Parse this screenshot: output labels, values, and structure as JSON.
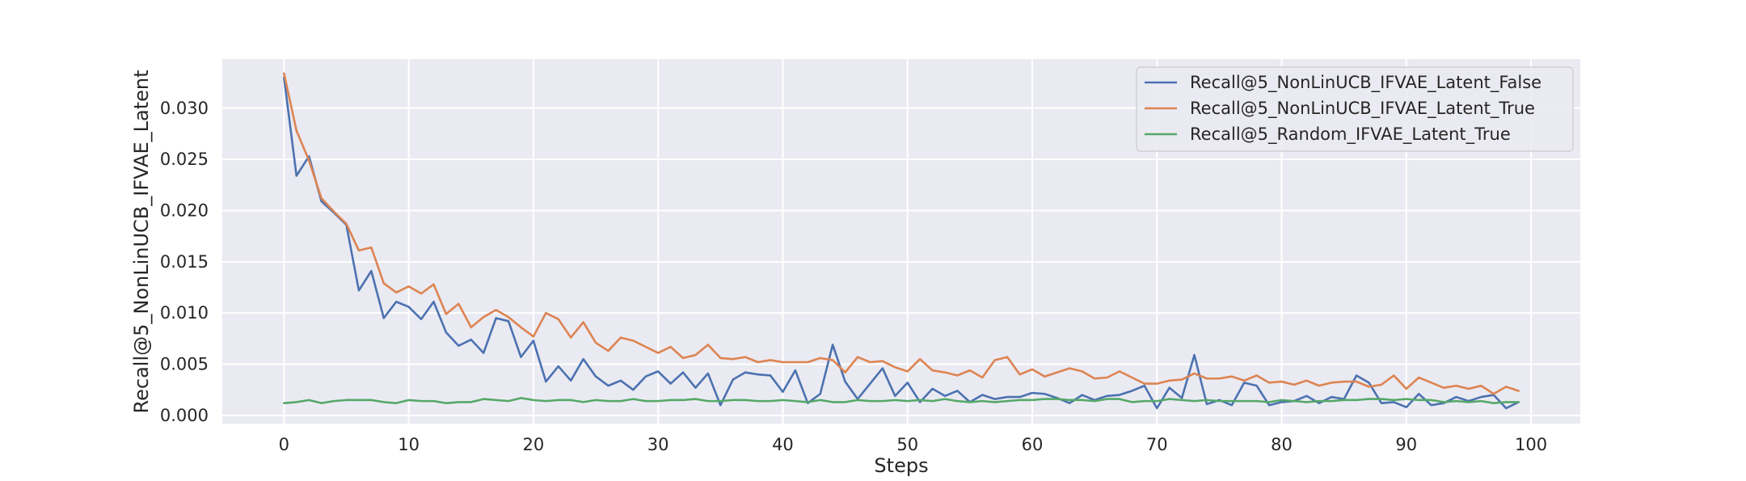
{
  "chart_data": {
    "type": "line",
    "title": "",
    "xlabel": "Steps",
    "ylabel": "Recall@5_NonLinUCB_IFVAE_Latent",
    "xlim": [
      -4.95,
      103.95
    ],
    "ylim": [
      -0.0008,
      0.0348
    ],
    "xticks": [
      0,
      10,
      20,
      30,
      40,
      50,
      60,
      70,
      80,
      90,
      100
    ],
    "xtick_labels": [
      "0",
      "10",
      "20",
      "30",
      "40",
      "50",
      "60",
      "70",
      "80",
      "90",
      "100"
    ],
    "yticks": [
      0.0,
      0.005,
      0.01,
      0.015,
      0.02,
      0.025,
      0.03
    ],
    "ytick_labels": [
      "0.000",
      "0.005",
      "0.010",
      "0.015",
      "0.020",
      "0.025",
      "0.030"
    ],
    "grid": true,
    "legend_position": "top-right",
    "series": [
      {
        "name": "Recall@5_NonLinUCB_IFVAE_Latent_False",
        "color": "#4c72b0",
        "values": [
          0.033,
          0.0234,
          0.0253,
          0.0209,
          0.0198,
          0.0186,
          0.0122,
          0.0141,
          0.0095,
          0.0111,
          0.0106,
          0.0094,
          0.0111,
          0.0081,
          0.0068,
          0.0074,
          0.0061,
          0.0095,
          0.0092,
          0.0057,
          0.0073,
          0.0033,
          0.0048,
          0.0034,
          0.0055,
          0.0038,
          0.0029,
          0.0034,
          0.0025,
          0.0038,
          0.0043,
          0.0031,
          0.0042,
          0.0027,
          0.0041,
          0.001,
          0.0035,
          0.0042,
          0.004,
          0.0039,
          0.0023,
          0.0044,
          0.0012,
          0.0021,
          0.0069,
          0.0033,
          0.0016,
          0.0031,
          0.0046,
          0.0019,
          0.0032,
          0.0013,
          0.0026,
          0.0019,
          0.0024,
          0.0013,
          0.002,
          0.0016,
          0.0018,
          0.0018,
          0.0022,
          0.0021,
          0.0017,
          0.0012,
          0.002,
          0.0015,
          0.0019,
          0.002,
          0.0024,
          0.0029,
          0.0007,
          0.0027,
          0.0017,
          0.0059,
          0.0011,
          0.0015,
          0.001,
          0.0032,
          0.0029,
          0.001,
          0.0013,
          0.0014,
          0.0019,
          0.0012,
          0.0018,
          0.0016,
          0.0039,
          0.0032,
          0.0012,
          0.0013,
          0.0008,
          0.0021,
          0.001,
          0.0012,
          0.0018,
          0.0014,
          0.0018,
          0.002,
          0.0007,
          0.0013
        ]
      },
      {
        "name": "Recall@5_NonLinUCB_IFVAE_Latent_True",
        "color": "#dd8452",
        "values": [
          0.0334,
          0.0278,
          0.0249,
          0.0212,
          0.0199,
          0.0187,
          0.0161,
          0.0164,
          0.0129,
          0.012,
          0.0126,
          0.0119,
          0.0128,
          0.0099,
          0.0109,
          0.0086,
          0.0096,
          0.0103,
          0.0096,
          0.0086,
          0.0077,
          0.01,
          0.0094,
          0.0076,
          0.0091,
          0.0071,
          0.0063,
          0.0076,
          0.0073,
          0.0067,
          0.0061,
          0.0067,
          0.0056,
          0.0059,
          0.0069,
          0.0056,
          0.0055,
          0.0057,
          0.0052,
          0.0054,
          0.0052,
          0.0052,
          0.0052,
          0.0056,
          0.0054,
          0.0042,
          0.0057,
          0.0052,
          0.0053,
          0.0047,
          0.0043,
          0.0055,
          0.0044,
          0.0042,
          0.0039,
          0.0044,
          0.0037,
          0.0054,
          0.0057,
          0.004,
          0.0045,
          0.0038,
          0.0042,
          0.0046,
          0.0043,
          0.0036,
          0.0037,
          0.0043,
          0.0037,
          0.0031,
          0.0031,
          0.0034,
          0.0035,
          0.0041,
          0.0036,
          0.0036,
          0.0038,
          0.0034,
          0.0039,
          0.0032,
          0.0033,
          0.003,
          0.0034,
          0.0029,
          0.0032,
          0.0033,
          0.0033,
          0.0028,
          0.003,
          0.0039,
          0.0026,
          0.0037,
          0.0032,
          0.0027,
          0.0029,
          0.0026,
          0.0029,
          0.0021,
          0.0028,
          0.0024
        ]
      },
      {
        "name": "Recall@5_Random_IFVAE_Latent_True",
        "color": "#55a868",
        "values": [
          0.0012,
          0.0013,
          0.0015,
          0.0012,
          0.0014,
          0.0015,
          0.0015,
          0.0015,
          0.0013,
          0.0012,
          0.0015,
          0.0014,
          0.0014,
          0.0012,
          0.0013,
          0.0013,
          0.0016,
          0.0015,
          0.0014,
          0.0017,
          0.0015,
          0.0014,
          0.0015,
          0.0015,
          0.0013,
          0.0015,
          0.0014,
          0.0014,
          0.0016,
          0.0014,
          0.0014,
          0.0015,
          0.0015,
          0.0016,
          0.0014,
          0.0014,
          0.0015,
          0.0015,
          0.0014,
          0.0014,
          0.0015,
          0.0014,
          0.0013,
          0.0015,
          0.0013,
          0.0013,
          0.0015,
          0.0014,
          0.0014,
          0.0015,
          0.0014,
          0.0015,
          0.0014,
          0.0016,
          0.0014,
          0.0013,
          0.0014,
          0.0013,
          0.0014,
          0.0015,
          0.0015,
          0.0016,
          0.0016,
          0.0015,
          0.0015,
          0.0014,
          0.0016,
          0.0016,
          0.0013,
          0.0014,
          0.0014,
          0.0016,
          0.0015,
          0.0014,
          0.0015,
          0.0014,
          0.0014,
          0.0014,
          0.0014,
          0.0013,
          0.0015,
          0.0014,
          0.0013,
          0.0014,
          0.0014,
          0.0015,
          0.0015,
          0.0016,
          0.0016,
          0.0015,
          0.0016,
          0.0015,
          0.0015,
          0.0013,
          0.0014,
          0.0013,
          0.0014,
          0.0012,
          0.0013,
          0.0013
        ]
      }
    ]
  }
}
